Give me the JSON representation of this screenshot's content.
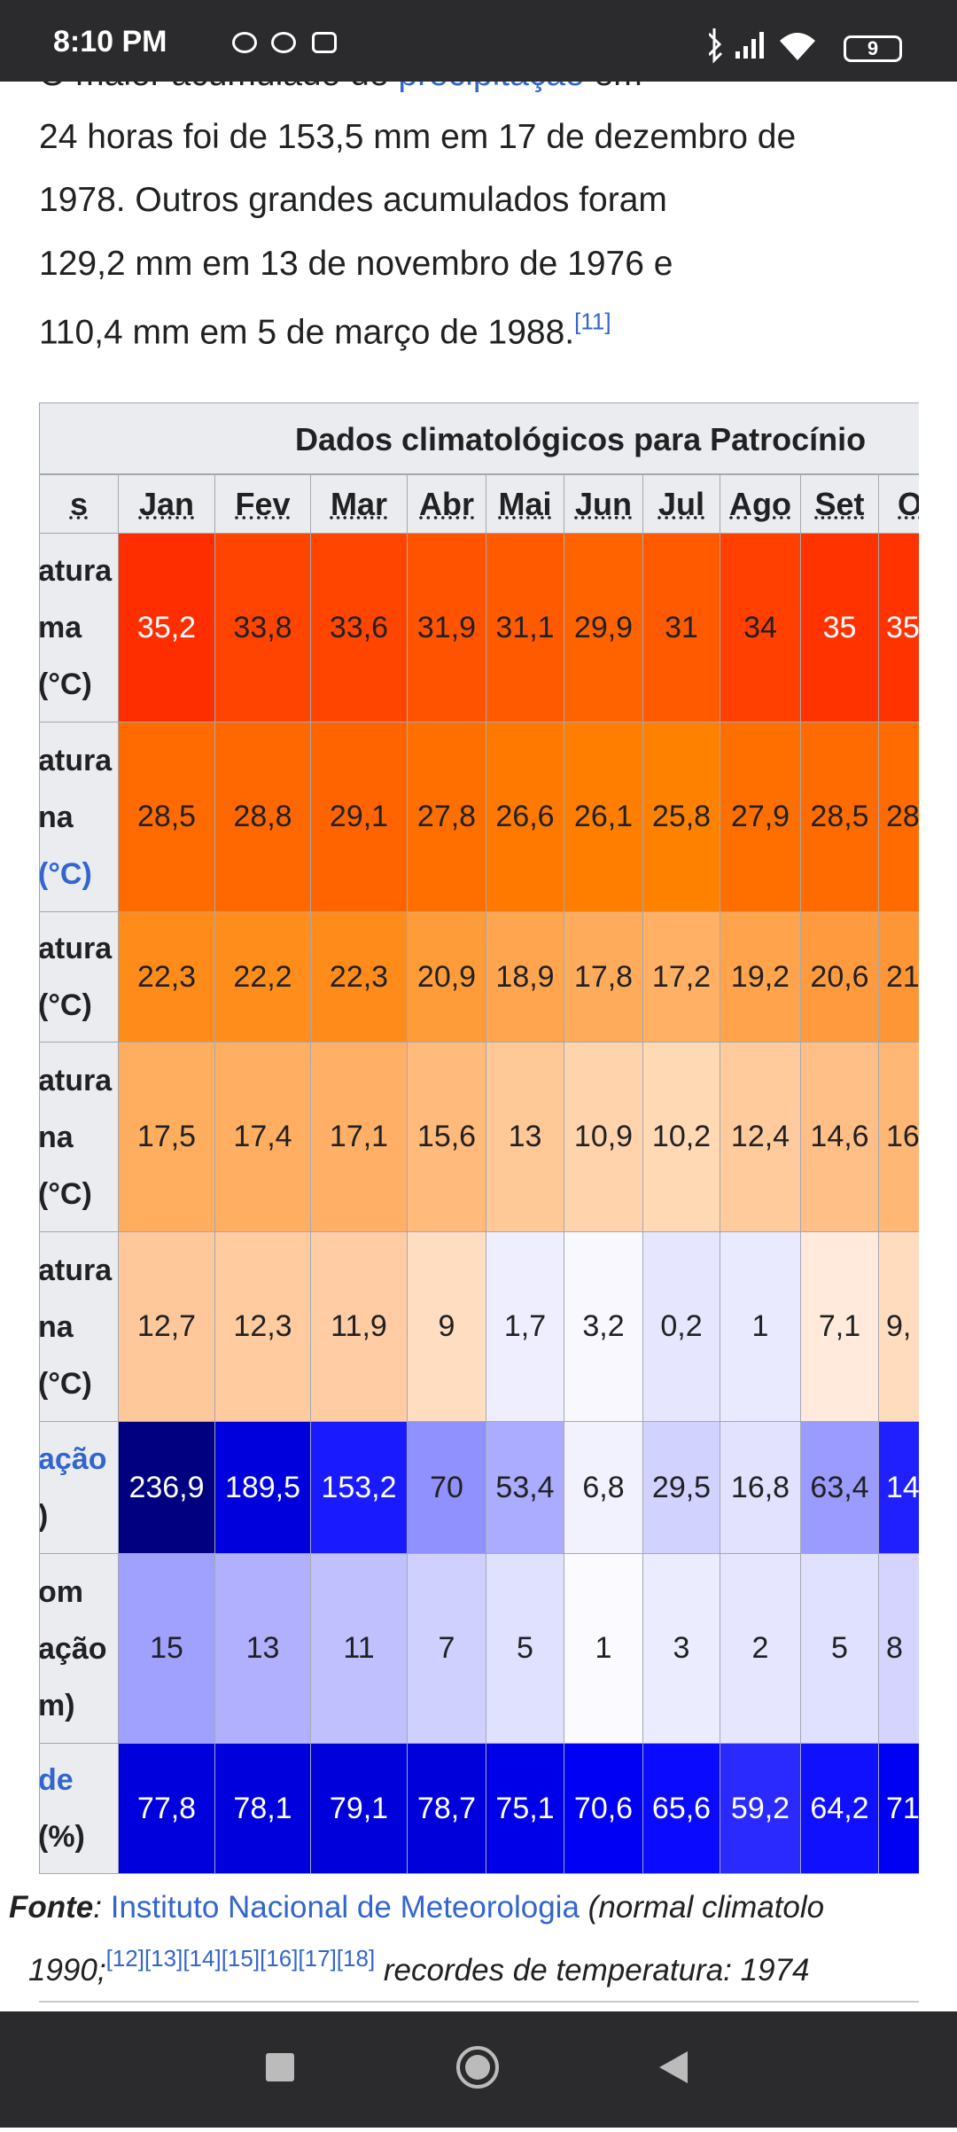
{
  "status_bar": {
    "time": "8:10 PM",
    "battery": "9"
  },
  "article": {
    "lines": [
      [
        "O maior acumulado de ",
        "precipitação",
        " em"
      ],
      [
        "24 horas foi de 153,5 mm em 17 de dezembro de"
      ],
      [
        "1978. Outros grandes acumulados foram"
      ],
      [
        "129,2 mm em 13 de novembro de 1976 e"
      ],
      [
        "110,4 mm em 5 de março de 1988.",
        "[11]"
      ]
    ]
  },
  "table": {
    "caption": "Dados climatológicos para Patrocínio",
    "header": [
      "s",
      "Jan",
      "Fev",
      "Mar",
      "Abr",
      "Mai",
      "Jun",
      "Jul",
      "Ago",
      "Set",
      "Ou"
    ],
    "rows": [
      {
        "label": [
          "atura",
          "ma",
          "(°C)"
        ],
        "cells": [
          "35,2",
          "33,8",
          "33,6",
          "31,9",
          "31,1",
          "29,9",
          "31",
          "34",
          "35",
          "35"
        ],
        "colors": [
          "#ff2e00",
          "#ff4300",
          "#ff4500",
          "#ff5300",
          "#ff5a00",
          "#ff6300",
          "#ff5a00",
          "#ff4000",
          "#ff3300",
          "#ff3300"
        ]
      },
      {
        "label": [
          "atura",
          "na",
          "(°C)"
        ],
        "cells": [
          "28,5",
          "28,8",
          "29,1",
          "27,8",
          "26,6",
          "26,1",
          "25,8",
          "27,9",
          "28,5",
          "28"
        ],
        "colors": [
          "#ff6b00",
          "#ff6700",
          "#ff6400",
          "#ff6f00",
          "#ff7900",
          "#ff7e00",
          "#ff8100",
          "#ff6f00",
          "#ff6b00",
          "#ff6b00"
        ]
      },
      {
        "label": [
          "atura",
          "(°C)"
        ],
        "cells": [
          "22,3",
          "22,2",
          "22,3",
          "20,9",
          "18,9",
          "17,8",
          "17,2",
          "19,2",
          "20,6",
          "21"
        ],
        "colors": [
          "#ff8c1a",
          "#ff8d1c",
          "#ff8c1a",
          "#ff9c3a",
          "#ffa550",
          "#ffab5c",
          "#ffb064",
          "#ffa34d",
          "#ff9a3e",
          "#ff9636"
        ]
      },
      {
        "label": [
          "atura",
          "na",
          "(°C)"
        ],
        "cells": [
          "17,5",
          "17,4",
          "17,1",
          "15,6",
          "13",
          "10,9",
          "10,2",
          "12,4",
          "14,6",
          "16"
        ],
        "colors": [
          "#ffae60",
          "#ffae62",
          "#ffb066",
          "#ffba7c",
          "#ffc896",
          "#ffd4ac",
          "#ffd8b4",
          "#ffcb9d",
          "#ffbf86",
          "#ffb775"
        ]
      },
      {
        "label": [
          "atura",
          "na",
          "(°C)"
        ],
        "cells": [
          "12,7",
          "12,3",
          "11,9",
          "9",
          "1,7",
          "3,2",
          "0,2",
          "1",
          "7,1",
          "9,"
        ],
        "colors": [
          "#ffc89a",
          "#ffcb9f",
          "#ffcca4",
          "#ffddc0",
          "#eeeefe",
          "#f8f8fe",
          "#e6e6fe",
          "#eaeafe",
          "#ffeadb",
          "#ffdcbd"
        ]
      },
      {
        "label": [
          "ação",
          ")"
        ],
        "cells": [
          "236,9",
          "189,5",
          "153,2",
          "70",
          "53,4",
          "6,8",
          "29,5",
          "16,8",
          "63,4",
          "14"
        ],
        "colors": [
          "#000080",
          "#0000dd",
          "#1a1aff",
          "#9090ff",
          "#ababff",
          "#f2f2ff",
          "#d2d2ff",
          "#e2e2ff",
          "#9a9aff",
          "#2020ff"
        ]
      },
      {
        "label": [
          "om",
          "ação",
          "m)"
        ],
        "cells": [
          "15",
          "13",
          "11",
          "7",
          "5",
          "1",
          "3",
          "2",
          "5",
          "8"
        ],
        "colors": [
          "#a0a0ff",
          "#b0b0ff",
          "#c0c0ff",
          "#d0d0ff",
          "#e0e0ff",
          "#fafaff",
          "#ececff",
          "#e6e6ff",
          "#e0e0ff",
          "#d4d4ff"
        ]
      },
      {
        "label": [
          "de",
          "(%)"
        ],
        "cells": [
          "77,8",
          "78,1",
          "79,1",
          "78,7",
          "75,1",
          "70,6",
          "65,6",
          "59,2",
          "64,2",
          "71"
        ],
        "colors": [
          "#0000dd",
          "#0000dc",
          "#0000da",
          "#0000db",
          "#0000e8",
          "#0000f5",
          "#0a0aff",
          "#2a2aff",
          "#1010ff",
          "#0000f3"
        ]
      }
    ]
  },
  "source": {
    "line1": [
      "Fonte",
      ": ",
      "Instituto Nacional de Meteorologia",
      " (normal climatolo"
    ],
    "line2": [
      "1990;",
      "[12][13][14][15][16][17][18]",
      " recordes de temperatura: 1974"
    ]
  }
}
